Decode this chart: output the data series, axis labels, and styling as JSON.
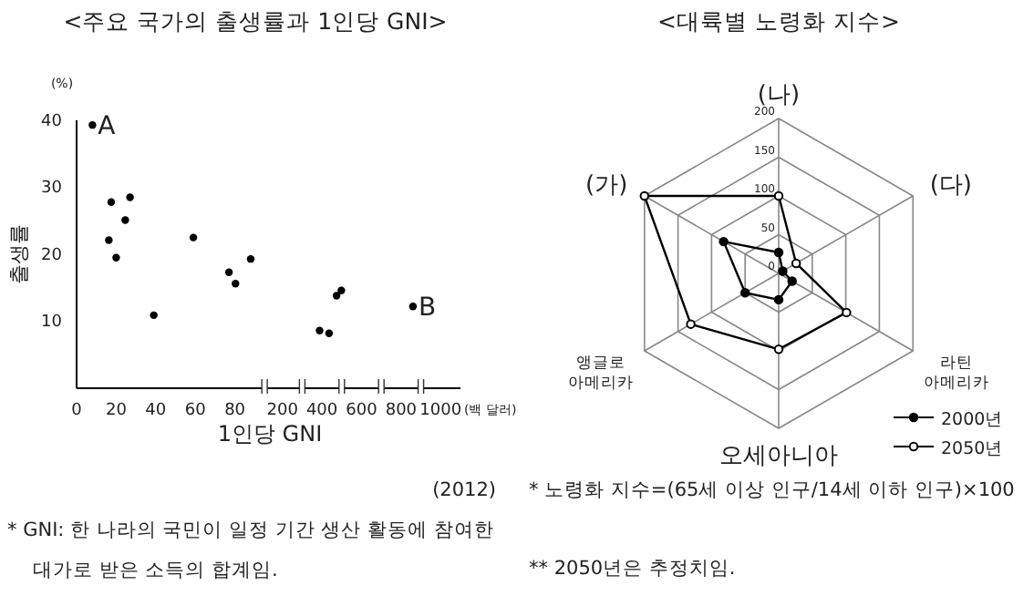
{
  "chart_data": [
    {
      "type": "scatter",
      "title": "<주요 국가의 출생률과 1인당 GNI>",
      "xlabel": "1인당 GNI",
      "ylabel": "출생률",
      "x": [
        8,
        17.5,
        27,
        24.6,
        16.3,
        20,
        39,
        59,
        77,
        80.3,
        88
      ],
      "values": [
        39.3,
        27.8,
        28.5,
        25.1,
        22.1,
        19.5,
        10.9,
        22.5,
        17.3,
        15.6,
        19.3
      ],
      "color": "#000000",
      "marker": "circle",
      "xlim": [
        0,
        95
      ],
      "xticks": [
        0,
        20,
        40,
        60,
        80
      ],
      "ylim": [
        0,
        40
      ],
      "yticks": [
        10,
        20,
        30,
        40
      ],
      "grid": false,
      "annotations": [
        {
          "text": "A",
          "x": 8,
          "y": 39.3
        },
        "(%)",
        "(2012)",
        "* GNI: 한 나라의 국민이 일정 기간 생산 활동에 참여한 대가로 받은 소득의 합계임."
      ]
    },
    {
      "type": "scatter",
      "x": [
        388,
        436,
        474,
        498,
        860
      ],
      "values": [
        8.6,
        8.2,
        13.8,
        14.6,
        12.2
      ],
      "color": "#000000",
      "marker": "circle",
      "xlim": [
        110,
        1100
      ],
      "xticks": [
        200,
        400,
        600,
        800,
        1000
      ],
      "ylim": [
        0,
        40
      ],
      "tick_labels": "x",
      "grid": false,
      "annotations": [
        {
          "text": "B",
          "x": 860,
          "y": 12.2
        },
        "(백 달러)"
      ]
    },
    {
      "type": "radar",
      "title": "<대륙별 노령화 지수>",
      "categories": [
        "(나)",
        "(다)",
        "라틴 아메리카",
        "오세아니아",
        "앵글로 아메리카",
        "(가)"
      ],
      "ylim": [
        0,
        200
      ],
      "yticks": [
        0,
        50,
        100,
        150,
        200
      ],
      "marker": "circle",
      "legend": "bottom right",
      "series": [
        {
          "name": "2000년",
          "color": "#000000",
          "values": [
            27,
            6,
            20,
            34,
            50,
            82
          ]
        },
        {
          "name": "2050년",
          "color": "#000000",
          "values": [
            100,
            26,
            101,
            98,
            131,
            200
          ]
        }
      ],
      "annotations": [
        "* 노령화 지수=(65세 이상 인구/14세 이하 인구)×100",
        "** 2050년은 추정치임."
      ]
    }
  ]
}
